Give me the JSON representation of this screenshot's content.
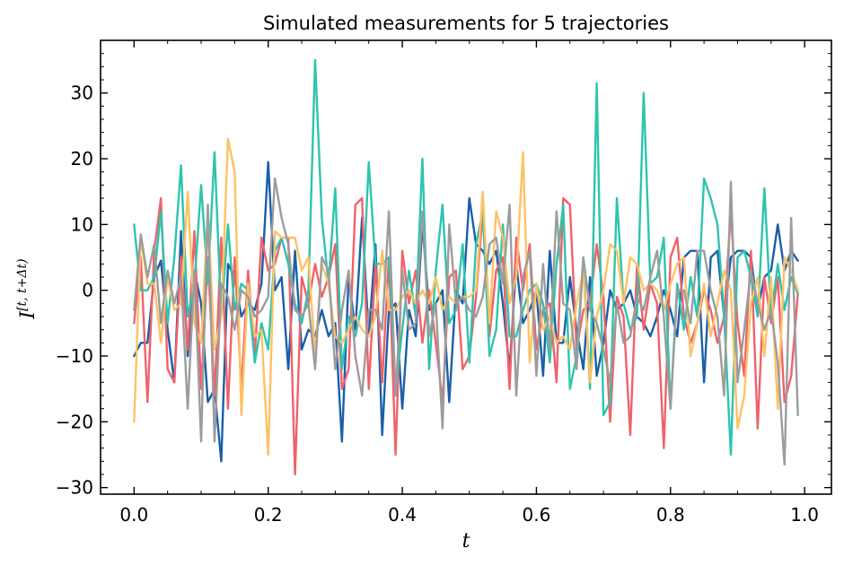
{
  "chart_data": {
    "type": "line",
    "title": "Simulated measurements for 5 trajectories",
    "xlabel": "t",
    "ylabel_main": "I",
    "ylabel_superscript": "[t, t+Δt)",
    "xlim": [
      -0.05,
      1.04
    ],
    "ylim": [
      -31,
      38
    ],
    "x_ticks": [
      0.0,
      0.2,
      0.4,
      0.6,
      0.8,
      1.0
    ],
    "x_tick_labels": [
      "0.0",
      "0.2",
      "0.4",
      "0.6",
      "0.8",
      "1.0"
    ],
    "y_ticks": [
      -30,
      -20,
      -10,
      0,
      10,
      20,
      30
    ],
    "y_tick_labels": [
      "−30",
      "−20",
      "−10",
      "0",
      "10",
      "20",
      "30"
    ],
    "grid": false,
    "legend": "none",
    "x": [
      0.0,
      0.01,
      0.02,
      0.03,
      0.04,
      0.05,
      0.06,
      0.07,
      0.08,
      0.09,
      0.1,
      0.11,
      0.12,
      0.13,
      0.14,
      0.15,
      0.16,
      0.17,
      0.18,
      0.19,
      0.2,
      0.21,
      0.22,
      0.23,
      0.24,
      0.25,
      0.26,
      0.27,
      0.28,
      0.29,
      0.3,
      0.31,
      0.32,
      0.33,
      0.34,
      0.35,
      0.36,
      0.37,
      0.38,
      0.39,
      0.4,
      0.41,
      0.42,
      0.43,
      0.44,
      0.45,
      0.46,
      0.47,
      0.48,
      0.49,
      0.5,
      0.51,
      0.52,
      0.53,
      0.54,
      0.55,
      0.56,
      0.57,
      0.58,
      0.59,
      0.6,
      0.61,
      0.62,
      0.63,
      0.64,
      0.65,
      0.66,
      0.67,
      0.68,
      0.69,
      0.7,
      0.71,
      0.72,
      0.73,
      0.74,
      0.75,
      0.76,
      0.77,
      0.78,
      0.79,
      0.8,
      0.81,
      0.82,
      0.83,
      0.84,
      0.85,
      0.86,
      0.87,
      0.88,
      0.89,
      0.9,
      0.91,
      0.92,
      0.93,
      0.94,
      0.95,
      0.96,
      0.97,
      0.98,
      0.99
    ],
    "series": [
      {
        "color": "#1a5fa8",
        "values": [
          -10,
          -8,
          -8,
          2,
          4.5,
          -6,
          -14,
          9,
          -10,
          3,
          -2,
          -17,
          -15,
          -26,
          4,
          2,
          -4,
          -2,
          -3,
          1,
          19.5,
          0,
          2,
          -12,
          6,
          -9,
          -6,
          -7,
          -3,
          -7,
          -5,
          -23,
          2,
          -6,
          11,
          -7,
          7,
          -22,
          -3,
          -2,
          -18,
          -3,
          -7,
          10,
          -3,
          -2,
          0,
          -17,
          0,
          -2,
          14,
          7,
          6,
          4,
          6,
          -2,
          -12,
          4,
          -5,
          -3,
          0,
          -13,
          6,
          -8,
          -8,
          2,
          -6,
          -12,
          2,
          -13,
          -8,
          0,
          -3,
          -2,
          0,
          -4,
          -5,
          -7,
          -4,
          0,
          -3,
          -7,
          5,
          6,
          6,
          -14,
          5,
          6,
          -4,
          5,
          6,
          6,
          5,
          -3,
          2,
          3,
          10,
          3,
          6,
          4.5
        ],
        "name": ""
      },
      {
        "color": "#f0626a",
        "values": [
          -5,
          5,
          -17,
          6,
          14,
          -12,
          -14,
          5,
          -9,
          9,
          -15,
          5,
          -16,
          8,
          -18,
          5,
          -15,
          3,
          -10,
          8,
          3,
          4,
          8,
          8,
          -28,
          2,
          -2,
          4,
          -1,
          2,
          7,
          -15,
          -12,
          13,
          14,
          -15,
          4,
          -14,
          5,
          -25,
          6,
          -2,
          3,
          -8,
          0,
          -8,
          -17,
          2,
          3,
          -12,
          -10,
          -1,
          12,
          -7,
          3,
          5,
          -15,
          8,
          0,
          7,
          -9,
          -3,
          -2,
          -14,
          14,
          13,
          -9,
          -3,
          -2,
          7,
          -1,
          -20,
          -1,
          -4,
          -22,
          4,
          -6,
          1,
          -2,
          -24,
          5,
          8,
          -4,
          -8,
          -5,
          0,
          -3,
          -8,
          -4,
          12,
          -5,
          -13,
          6,
          -21,
          2,
          -5,
          2,
          -17,
          -13,
          -0.5
        ],
        "name": ""
      },
      {
        "color": "#2ec4ae",
        "values": [
          10,
          0,
          0,
          2,
          12,
          -5,
          5,
          19,
          -4,
          1,
          16,
          1,
          21,
          -4,
          10,
          -3,
          1,
          0,
          -11,
          -5,
          -9,
          6,
          8,
          4,
          -2,
          -5,
          0,
          35,
          11,
          1,
          15.5,
          -12,
          -4,
          -7,
          -2,
          19.5,
          4,
          4,
          5,
          -15,
          -6,
          3,
          -4,
          20,
          -12,
          3,
          13,
          -5,
          -3,
          7,
          -11,
          7,
          12,
          -10,
          -6,
          10,
          -7,
          -7,
          -3,
          0,
          1,
          -2,
          -11,
          4,
          13,
          -15,
          -10,
          5,
          -15,
          31.5,
          -19,
          -17,
          14,
          -2,
          -6,
          -4,
          30,
          1,
          2,
          8,
          -18,
          1,
          -6,
          2,
          -4,
          17,
          14,
          10,
          -4,
          -25,
          5,
          6,
          2,
          -4,
          15.5,
          -4,
          4,
          -3,
          2,
          -0.5
        ],
        "name": ""
      },
      {
        "color": "#fdc266",
        "values": [
          -20,
          8,
          1,
          1,
          -8,
          2,
          -3,
          -2,
          15,
          -5,
          -8,
          12,
          -9,
          -4,
          23,
          18,
          -19,
          1,
          -7,
          -6,
          -25,
          9,
          8,
          8,
          8,
          3,
          5,
          -10,
          4,
          1,
          -7,
          -8,
          -6,
          -4,
          -6,
          -7,
          -4,
          6,
          -3,
          -3,
          -1,
          0,
          -2,
          0,
          -2,
          2,
          -3,
          -1,
          -2,
          -1,
          -1,
          0,
          15,
          -5,
          12,
          8,
          -2,
          2,
          21,
          -11,
          1,
          -6,
          -4,
          -8,
          -7,
          -9,
          -2,
          3,
          -14,
          -4,
          0,
          7,
          6,
          -2,
          5,
          4,
          0,
          1,
          0,
          -3,
          1,
          4,
          5,
          -10,
          -5,
          1,
          -7,
          -2,
          3,
          0,
          -21,
          -16,
          -2,
          2,
          -10,
          2,
          -18,
          5,
          3,
          0
        ],
        "name": ""
      },
      {
        "color": "#9c9c9c",
        "values": [
          -3,
          8.5,
          2,
          7,
          -5,
          3,
          -2,
          2,
          -18,
          3,
          -23,
          13,
          -23,
          1,
          -1,
          -6,
          0,
          -1,
          -4,
          -3,
          -1,
          17,
          11,
          7,
          -3,
          -4,
          -2,
          -12,
          5,
          3,
          -12,
          -3,
          3,
          -10,
          -16,
          -3,
          -3,
          -6,
          12,
          -16,
          3,
          -6,
          -5,
          12,
          -7,
          -2,
          -21,
          10,
          -2,
          -1,
          -3,
          -4,
          -1,
          7,
          8,
          1,
          13,
          -16,
          2,
          6,
          -13,
          4,
          -9,
          12,
          -2,
          -3,
          -12,
          5,
          -3,
          -5,
          -9,
          -14,
          -2,
          -8,
          -7,
          -1,
          -3,
          2,
          6,
          -4,
          -18,
          0,
          0,
          -5,
          6,
          6,
          0,
          -4,
          -16,
          16.5,
          -14,
          -6,
          3,
          -2,
          -6,
          -3,
          -11,
          -26.5,
          11,
          -19
        ],
        "name": ""
      }
    ]
  }
}
